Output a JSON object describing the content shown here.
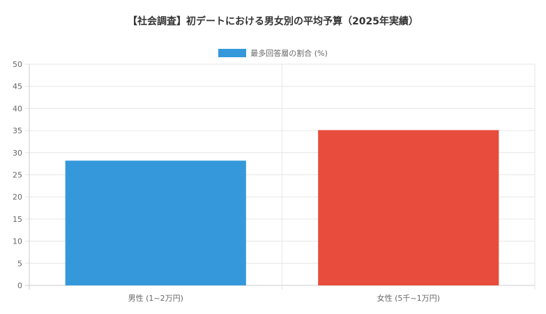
{
  "chart_data": {
    "type": "bar",
    "title": "【社会調査】初デートにおける男女別の平均予算（2025年実績）",
    "categories": [
      "男性 (1~2万円)",
      "女性 (5千~1万円)"
    ],
    "series": [
      {
        "name": "最多回答層の割合 (%)",
        "values": [
          28.2,
          35.1
        ],
        "colors": [
          "#3498db",
          "#e74c3c"
        ]
      }
    ],
    "ylim": [
      0,
      50
    ],
    "yticks": [
      0,
      5,
      10,
      15,
      20,
      25,
      30,
      35,
      40,
      45,
      50
    ],
    "grid": true,
    "legend": "top"
  }
}
